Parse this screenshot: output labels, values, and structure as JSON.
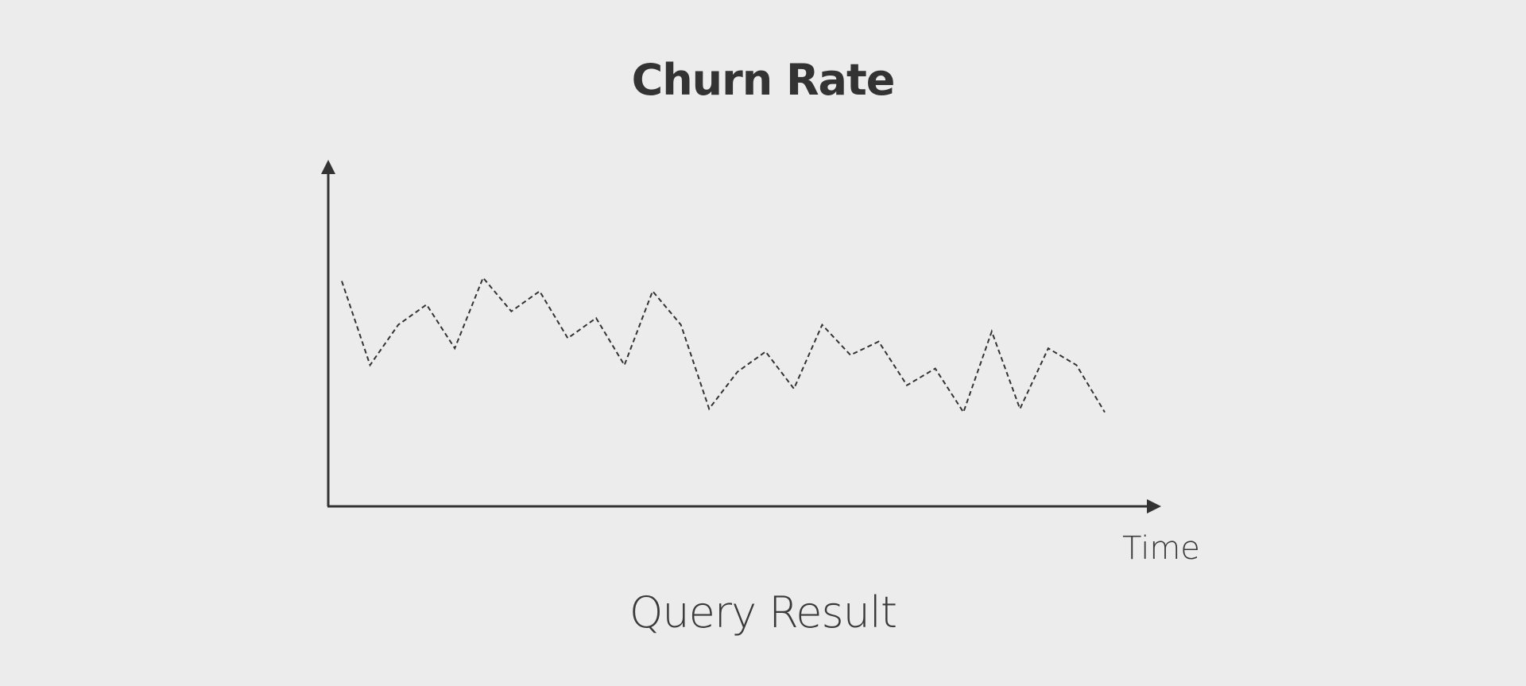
{
  "chart_data": {
    "type": "line",
    "title": "Churn Rate",
    "caption": "Query Result",
    "xlabel": "Time",
    "ylabel": "",
    "x": [
      1,
      2,
      3,
      4,
      5,
      6,
      7,
      8,
      9,
      10,
      11,
      12,
      13,
      14,
      15,
      16,
      17,
      18,
      19,
      20,
      21,
      22,
      23,
      24,
      25,
      26,
      27,
      28
    ],
    "series": [
      {
        "values": [
          0.67,
          0.42,
          0.54,
          0.6,
          0.47,
          0.68,
          0.58,
          0.64,
          0.5,
          0.56,
          0.42,
          0.64,
          0.54,
          0.29,
          0.4,
          0.46,
          0.35,
          0.54,
          0.45,
          0.49,
          0.36,
          0.41,
          0.28,
          0.52,
          0.29,
          0.47,
          0.42,
          0.28
        ]
      }
    ],
    "ylim": [
      0,
      1
    ],
    "grid": false,
    "line_style": "dashed",
    "colors": {
      "line": "#333333",
      "axis": "#333333",
      "background": "#ececec"
    }
  }
}
